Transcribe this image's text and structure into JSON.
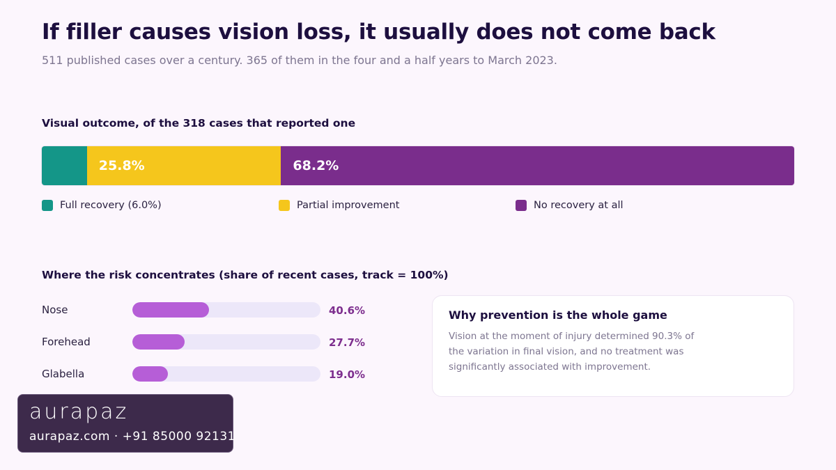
{
  "header": {
    "title": "If filler causes vision loss, it usually does not come back",
    "subtitle": "511 published cases over a century. 365 of them in the four and a half years to March 2023."
  },
  "outcome": {
    "heading": "Visual outcome, of the 318 cases that reported one"
  },
  "risk": {
    "heading": "Where the risk concentrates (share of recent cases, track = 100%)"
  },
  "card": {
    "title": "Why prevention is the whole game",
    "body": "Vision at the moment of injury determined 90.3% of the variation in final vision, and no treatment was significantly associated with improvement."
  },
  "brand": {
    "logo": "aurapaz",
    "contact": "aurapaz.com · +91 85000 92131"
  },
  "chart_data": [
    {
      "type": "bar",
      "stacked": true,
      "orientation": "horizontal",
      "title": "Visual outcome, of the 318 cases that reported one",
      "categories": [
        "Full recovery (6.0%)",
        "Partial improvement",
        "No recovery at all"
      ],
      "values": [
        6.0,
        25.8,
        68.2
      ],
      "data_labels": [
        "",
        "25.8%",
        "68.2%"
      ],
      "colors": [
        "#149688",
        "#f5c61c",
        "#7a2d8c"
      ],
      "total": 100,
      "legend": "bottom"
    },
    {
      "type": "bar",
      "orientation": "horizontal",
      "title": "Where the risk concentrates (share of recent cases, track = 100%)",
      "categories": [
        "Nose",
        "Forehead",
        "Glabella"
      ],
      "values": [
        40.6,
        27.7,
        19.0
      ],
      "data_labels": [
        "40.6%",
        "27.7%",
        "19.0%"
      ],
      "xlim": [
        0,
        100
      ],
      "colors": {
        "fill": "#b65ed7",
        "track": "#ece7f9",
        "label": "#7d2e8e"
      }
    }
  ]
}
